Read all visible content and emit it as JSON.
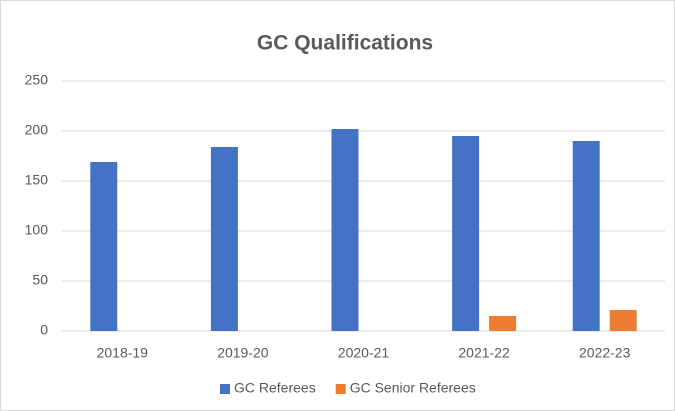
{
  "chart_data": {
    "type": "bar",
    "title": "GC Qualifications",
    "categories": [
      "2018-19",
      "2019-20",
      "2020-21",
      "2021-22",
      "2022-23"
    ],
    "series": [
      {
        "name": "GC Referees",
        "color": "#4472c4",
        "values": [
          169,
          184,
          202,
          195,
          190
        ]
      },
      {
        "name": "GC Senior Referees",
        "color": "#ed7d31",
        "values": [
          0,
          0,
          0,
          15,
          21
        ]
      }
    ],
    "ylim": [
      0,
      250
    ],
    "yticks": [
      0,
      50,
      100,
      150,
      200,
      250
    ],
    "grid": true,
    "legend": "bottom"
  }
}
